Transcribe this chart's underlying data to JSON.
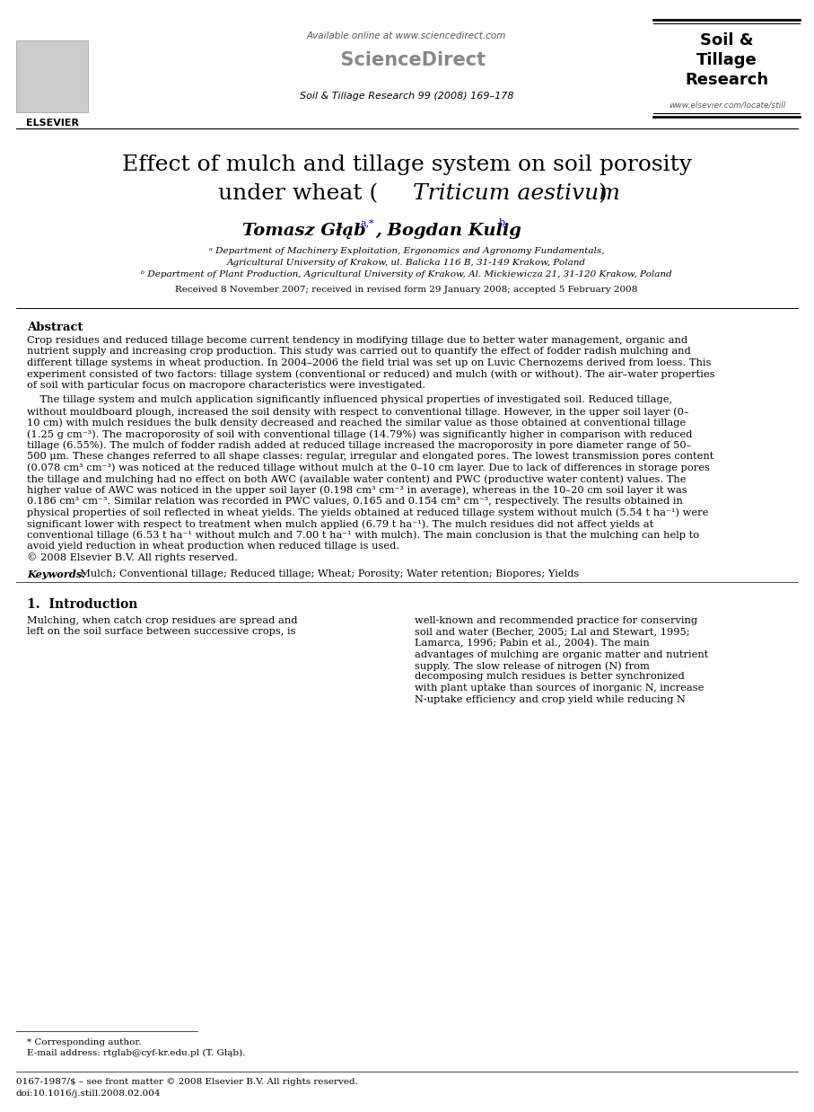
{
  "title_line1": "Effect of mulch and tillage system on soil porosity",
  "title_line2_normal": "under wheat (",
  "title_line2_italic": "Triticum aestivum",
  "title_line2_end": ")",
  "author1": "Tomasz Głąb",
  "author1_sup": "a,*",
  "author2": ", Bogdan Kulig",
  "author2_sup": "b",
  "affil_a1": "ᵃ Department of Machinery Exploitation, Ergonomics and Agronomy Fundamentals,",
  "affil_a2": "Agricultural University of Krakow, ul. Balicka 116 B, 31-149 Krakow, Poland",
  "affil_b": "ᵇ Department of Plant Production, Agricultural University of Krakow, Al. Mickiewicza 21, 31-120 Krakow, Poland",
  "received": "Received 8 November 2007; received in revised form 29 January 2008; accepted 5 February 2008",
  "journal_top": "Soil & Tillage Research 99 (2008) 169–178",
  "available_online": "Available online at www.sciencedirect.com",
  "journal_name_line1": "Soil &",
  "journal_name_line2": "Tillage",
  "journal_name_line3": "Research",
  "website": "www.elsevier.com/locate/still",
  "elsevier_text": "ELSEVIER",
  "abstract_title": "Abstract",
  "abstract_para1_l1": "Crop residues and reduced tillage become current tendency in modifying tillage due to better water management, organic and",
  "abstract_para1_l2": "nutrient supply and increasing crop production. This study was carried out to quantify the effect of fodder radish mulching and",
  "abstract_para1_l3": "different tillage systems in wheat production. In 2004–2006 the field trial was set up on Luvic Chernozems derived from loess. This",
  "abstract_para1_l4": "experiment consisted of two factors: tillage system (conventional or reduced) and mulch (with or without). The air–water properties",
  "abstract_para1_l5": "of soil with particular focus on macropore characteristics were investigated.",
  "abstract_para2_l1": "    The tillage system and mulch application significantly influenced physical properties of investigated soil. Reduced tillage,",
  "abstract_para2_l2": "without mouldboard plough, increased the soil density with respect to conventional tillage. However, in the upper soil layer (0–",
  "abstract_para2_l3": "10 cm) with mulch residues the bulk density decreased and reached the similar value as those obtained at conventional tillage",
  "abstract_para2_l4": "(1.25 g cm⁻³). The macroporosity of soil with conventional tillage (14.79%) was significantly higher in comparison with reduced",
  "abstract_para2_l5": "tillage (6.55%). The mulch of fodder radish added at reduced tillage increased the macroporosity in pore diameter range of 50–",
  "abstract_para2_l6": "500 μm. These changes referred to all shape classes: regular, irregular and elongated pores. The lowest transmission pores content",
  "abstract_para2_l7": "(0.078 cm³ cm⁻³) was noticed at the reduced tillage without mulch at the 0–10 cm layer. Due to lack of differences in storage pores",
  "abstract_para2_l8": "the tillage and mulching had no effect on both AWC (available water content) and PWC (productive water content) values. The",
  "abstract_para2_l9": "higher value of AWC was noticed in the upper soil layer (0.198 cm³ cm⁻³ in average), whereas in the 10–20 cm soil layer it was",
  "abstract_para2_l10": "0.186 cm³ cm⁻³. Similar relation was recorded in PWC values, 0.165 and 0.154 cm³ cm⁻³, respectively. The results obtained in",
  "abstract_para2_l11": "physical properties of soil reflected in wheat yields. The yields obtained at reduced tillage system without mulch (5.54 t ha⁻¹) were",
  "abstract_para2_l12": "significant lower with respect to treatment when mulch applied (6.79 t ha⁻¹). The mulch residues did not affect yields at",
  "abstract_para2_l13": "conventional tillage (6.53 t ha⁻¹ without mulch and 7.00 t ha⁻¹ with mulch). The main conclusion is that the mulching can help to",
  "abstract_para2_l14": "avoid yield reduction in wheat production when reduced tillage is used.",
  "abstract_copyright": "© 2008 Elsevier B.V. All rights reserved.",
  "keywords_bold": "Keywords:",
  "keywords_rest": "  Mulch; Conventional tillage; Reduced tillage; Wheat; Porosity; Water retention; Biopores; Yields",
  "intro_title": "1.  Introduction",
  "intro_col1_l1": "Mulching, when catch crop residues are spread and",
  "intro_col1_l2": "left on the soil surface between successive crops, is",
  "intro_col2_l1": "well-known and recommended practice for conserving",
  "intro_col2_l2": "soil and water (Becher, 2005; Lal and Stewart, 1995;",
  "intro_col2_l3": "Lamarca, 1996; Pabin et al., 2004). The main",
  "intro_col2_l4": "advantages of mulching are organic matter and nutrient",
  "intro_col2_l5": "supply. The slow release of nitrogen (N) from",
  "intro_col2_l6": "decomposing mulch residues is better synchronized",
  "intro_col2_l7": "with plant uptake than sources of inorganic N, increase",
  "intro_col2_l8": "N-uptake efficiency and crop yield while reducing N",
  "footnote_star": "* Corresponding author.",
  "footnote_email": "E-mail address: rtglab@cyf-kr.edu.pl (T. Głąb).",
  "bottom_line1": "0167-1987/$ – see front matter © 2008 Elsevier B.V. All rights reserved.",
  "bottom_line2": "doi:10.1016/j.still.2008.02.004",
  "bg_color": "#ffffff",
  "text_color": "#000000"
}
